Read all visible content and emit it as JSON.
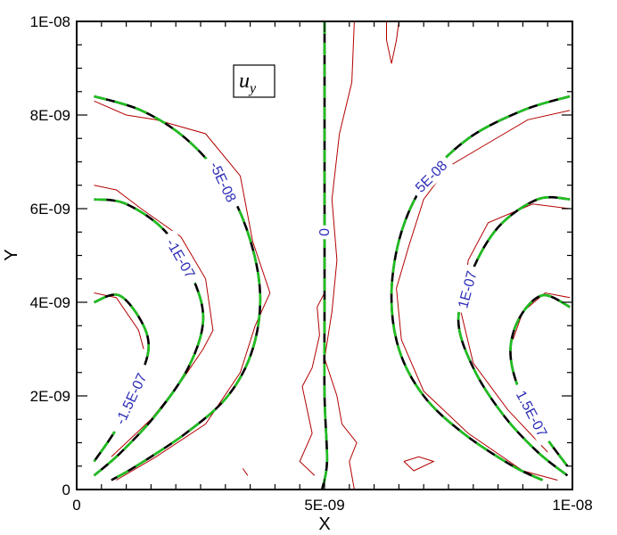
{
  "chart_data": {
    "type": "contour",
    "xlim": [
      0,
      1e-08
    ],
    "ylim": [
      0,
      1e-08
    ],
    "xlabel": "X",
    "ylabel": "Y",
    "x_ticks": [
      "0",
      "5E-09",
      "1E-08"
    ],
    "y_ticks": [
      "0",
      "2E-09",
      "4E-09",
      "6E-09",
      "8E-09",
      "1E-08"
    ],
    "variable_label": "u",
    "variable_sub": "y",
    "colors": {
      "frame": "#000000",
      "contour_primary": "#000000",
      "contour_dash": "#1fbf1f",
      "contour_noisy": "#b30000",
      "label": "#2e2eb8"
    },
    "contour_levels": [
      {
        "label": "0",
        "level": 0,
        "curves": [
          [
            [
              5e-09,
              1e-08
            ],
            [
              5e-09,
              7e-09
            ],
            [
              5e-09,
              4e-09
            ],
            [
              5e-09,
              2e-09
            ],
            [
              5.05e-09,
              6e-10
            ],
            [
              4.95e-09,
              0.0
            ]
          ]
        ],
        "noisy": [
          [
            [
              5.6e-09,
              1e-08
            ],
            [
              5.55e-09,
              8.7e-09
            ],
            [
              5.3e-09,
              7.6e-09
            ],
            [
              5.15e-09,
              6.2e-09
            ],
            [
              5.25e-09,
              4.9e-09
            ],
            [
              5.15e-09,
              3.8e-09
            ],
            [
              5e-09,
              2.8e-09
            ],
            [
              5.25e-09,
              2e-09
            ],
            [
              5.35e-09,
              1.4e-09
            ],
            [
              5.65e-09,
              1e-09
            ],
            [
              5.5e-09,
              6e-10
            ],
            [
              5.6e-09,
              0.0
            ]
          ],
          [
            [
              5e-09,
              4.2e-09
            ],
            [
              4.85e-09,
              3.9e-09
            ],
            [
              4.9e-09,
              3.3e-09
            ],
            [
              4.75e-09,
              2.6e-09
            ],
            [
              4.55e-09,
              2.2e-09
            ],
            [
              4.75e-09,
              1.2e-09
            ],
            [
              4.5e-09,
              6e-10
            ],
            [
              4.8e-09,
              3e-10
            ]
          ],
          [
            [
              6.5e-09,
              1e-08
            ],
            [
              6.45e-09,
              9.6e-09
            ],
            [
              6.35e-09,
              9.1e-09
            ],
            [
              6.25e-09,
              9.6e-09
            ],
            [
              6.25e-09,
              1e-08
            ]
          ],
          [
            [
              6.6e-09,
              6e-10
            ],
            [
              6.9e-09,
              7e-10
            ],
            [
              7.2e-09,
              6e-10
            ],
            [
              6.8e-09,
              4e-10
            ],
            [
              6.6e-09,
              6e-10
            ]
          ],
          [
            [
              3.35e-09,
              4.5e-10
            ],
            [
              3.45e-09,
              3e-10
            ]
          ]
        ]
      },
      {
        "label": "-5E-08",
        "level": -5e-08,
        "curves": [
          [
            [
              3.5e-10,
              8.4e-09
            ],
            [
              1.3e-09,
              8.1e-09
            ],
            [
              2.2e-09,
              7.5e-09
            ],
            [
              2.95e-09,
              6.6e-09
            ],
            [
              3.45e-09,
              5.5e-09
            ],
            [
              3.7e-09,
              4.2e-09
            ],
            [
              3.55e-09,
              3e-09
            ],
            [
              3.05e-09,
              2e-09
            ],
            [
              2.2e-09,
              1.2e-09
            ],
            [
              1.2e-09,
              5e-10
            ],
            [
              7e-10,
              2e-10
            ]
          ]
        ],
        "noisy": [
          [
            [
              3.5e-10,
              8.3e-09
            ],
            [
              1e-09,
              8e-09
            ],
            [
              1.6e-09,
              7.9e-09
            ],
            [
              2.6e-09,
              7.6e-09
            ],
            [
              3.3e-09,
              6.7e-09
            ],
            [
              3.55e-09,
              5.3e-09
            ],
            [
              3.9e-09,
              4.2e-09
            ],
            [
              3.6e-09,
              3.5e-09
            ],
            [
              3.3e-09,
              2.5e-09
            ],
            [
              2.6e-09,
              1.4e-09
            ],
            [
              1.6e-09,
              7e-10
            ],
            [
              8e-10,
              2e-10
            ]
          ]
        ]
      },
      {
        "label": "5E-08",
        "level": 5e-08,
        "curves": [
          [
            [
              9.95e-09,
              8.4e-09
            ],
            [
              9e-09,
              8.1e-09
            ],
            [
              7.9e-09,
              7.5e-09
            ],
            [
              7.05e-09,
              6.6e-09
            ],
            [
              6.55e-09,
              5.5e-09
            ],
            [
              6.35e-09,
              4.2e-09
            ],
            [
              6.5e-09,
              3e-09
            ],
            [
              7e-09,
              2e-09
            ],
            [
              7.8e-09,
              1.2e-09
            ],
            [
              8.8e-09,
              5e-10
            ],
            [
              9.4e-09,
              2e-10
            ]
          ]
        ],
        "noisy": [
          [
            [
              9.95e-09,
              8.1e-09
            ],
            [
              9.1e-09,
              7.9e-09
            ],
            [
              8.3e-09,
              7.4e-09
            ],
            [
              7.5e-09,
              6.9e-09
            ],
            [
              7e-09,
              6.2e-09
            ],
            [
              6.7e-09,
              5.2e-09
            ],
            [
              6.45e-09,
              4.3e-09
            ],
            [
              6.55e-09,
              3.2e-09
            ],
            [
              7e-09,
              2.1e-09
            ],
            [
              7.9e-09,
              1.2e-09
            ],
            [
              9e-09,
              4e-10
            ],
            [
              9.7e-09,
              2e-10
            ]
          ]
        ]
      },
      {
        "label": "-1E-07",
        "level": -1e-07,
        "curves": [
          [
            [
              3.5e-10,
              6.2e-09
            ],
            [
              1e-09,
              6.1e-09
            ],
            [
              1.8e-09,
              5.5e-09
            ],
            [
              2.35e-09,
              4.5e-09
            ],
            [
              2.55e-09,
              3.6e-09
            ],
            [
              2.25e-09,
              2.6e-09
            ],
            [
              1.6e-09,
              1.6e-09
            ],
            [
              9e-10,
              8e-10
            ],
            [
              3.5e-10,
              3e-10
            ]
          ]
        ],
        "noisy": [
          [
            [
              3.5e-10,
              6.5e-09
            ],
            [
              8e-10,
              6.4e-09
            ],
            [
              1.3e-09,
              6e-09
            ],
            [
              2.1e-09,
              5.4e-09
            ],
            [
              2.6e-09,
              4.5e-09
            ],
            [
              2.75e-09,
              3.4e-09
            ],
            [
              2.55e-09,
              3e-09
            ],
            [
              2.1e-09,
              2.3e-09
            ],
            [
              1.5e-09,
              1.5e-09
            ],
            [
              7e-10,
              7e-10
            ]
          ]
        ]
      },
      {
        "label": "1E-07",
        "level": 1e-07,
        "curves": [
          [
            [
              9.95e-09,
              6.2e-09
            ],
            [
              9.3e-09,
              6.2e-09
            ],
            [
              8.5e-09,
              5.6e-09
            ],
            [
              7.95e-09,
              4.6e-09
            ],
            [
              7.7e-09,
              3.6e-09
            ],
            [
              8e-09,
              2.6e-09
            ],
            [
              8.6e-09,
              1.6e-09
            ],
            [
              9.3e-09,
              8e-10
            ],
            [
              9.9e-09,
              3e-10
            ]
          ]
        ],
        "noisy": [
          [
            [
              9.95e-09,
              6e-09
            ],
            [
              9.2e-09,
              6.1e-09
            ],
            [
              8.3e-09,
              5.7e-09
            ],
            [
              7.9e-09,
              4.9e-09
            ],
            [
              7.75e-09,
              3.8e-09
            ],
            [
              8e-09,
              2.7e-09
            ],
            [
              8.7e-09,
              1.7e-09
            ],
            [
              9.5e-09,
              8e-10
            ]
          ]
        ]
      },
      {
        "label": "-1.5E-07",
        "level": -1.5e-07,
        "curves": [
          [
            [
              3.5e-10,
              4e-09
            ],
            [
              8.5e-10,
              4.15e-09
            ],
            [
              1.3e-09,
              3.6e-09
            ],
            [
              1.45e-09,
              3e-09
            ],
            [
              1.2e-09,
              2.2e-09
            ],
            [
              8e-10,
              1.3e-09
            ],
            [
              3.5e-10,
              6e-10
            ]
          ]
        ],
        "noisy": [
          [
            [
              3.5e-10,
              4.2e-09
            ],
            [
              8e-10,
              4.1e-09
            ],
            [
              1.25e-09,
              3.4e-09
            ],
            [
              1.35e-09,
              3e-09
            ]
          ]
        ]
      },
      {
        "label": "1.5E-07",
        "level": 1.5e-07,
        "curves": [
          [
            [
              9.95e-09,
              3.9e-09
            ],
            [
              9.4e-09,
              4.15e-09
            ],
            [
              8.95e-09,
              3.7e-09
            ],
            [
              8.75e-09,
              3e-09
            ],
            [
              8.9e-09,
              2.2e-09
            ],
            [
              9.35e-09,
              1.3e-09
            ],
            [
              9.9e-09,
              5e-10
            ]
          ]
        ],
        "noisy": [
          [
            [
              9.95e-09,
              4.1e-09
            ],
            [
              9.45e-09,
              4.2e-09
            ],
            [
              9e-09,
              3.8e-09
            ],
            [
              8.8e-09,
              3.2e-09
            ]
          ]
        ]
      }
    ]
  }
}
